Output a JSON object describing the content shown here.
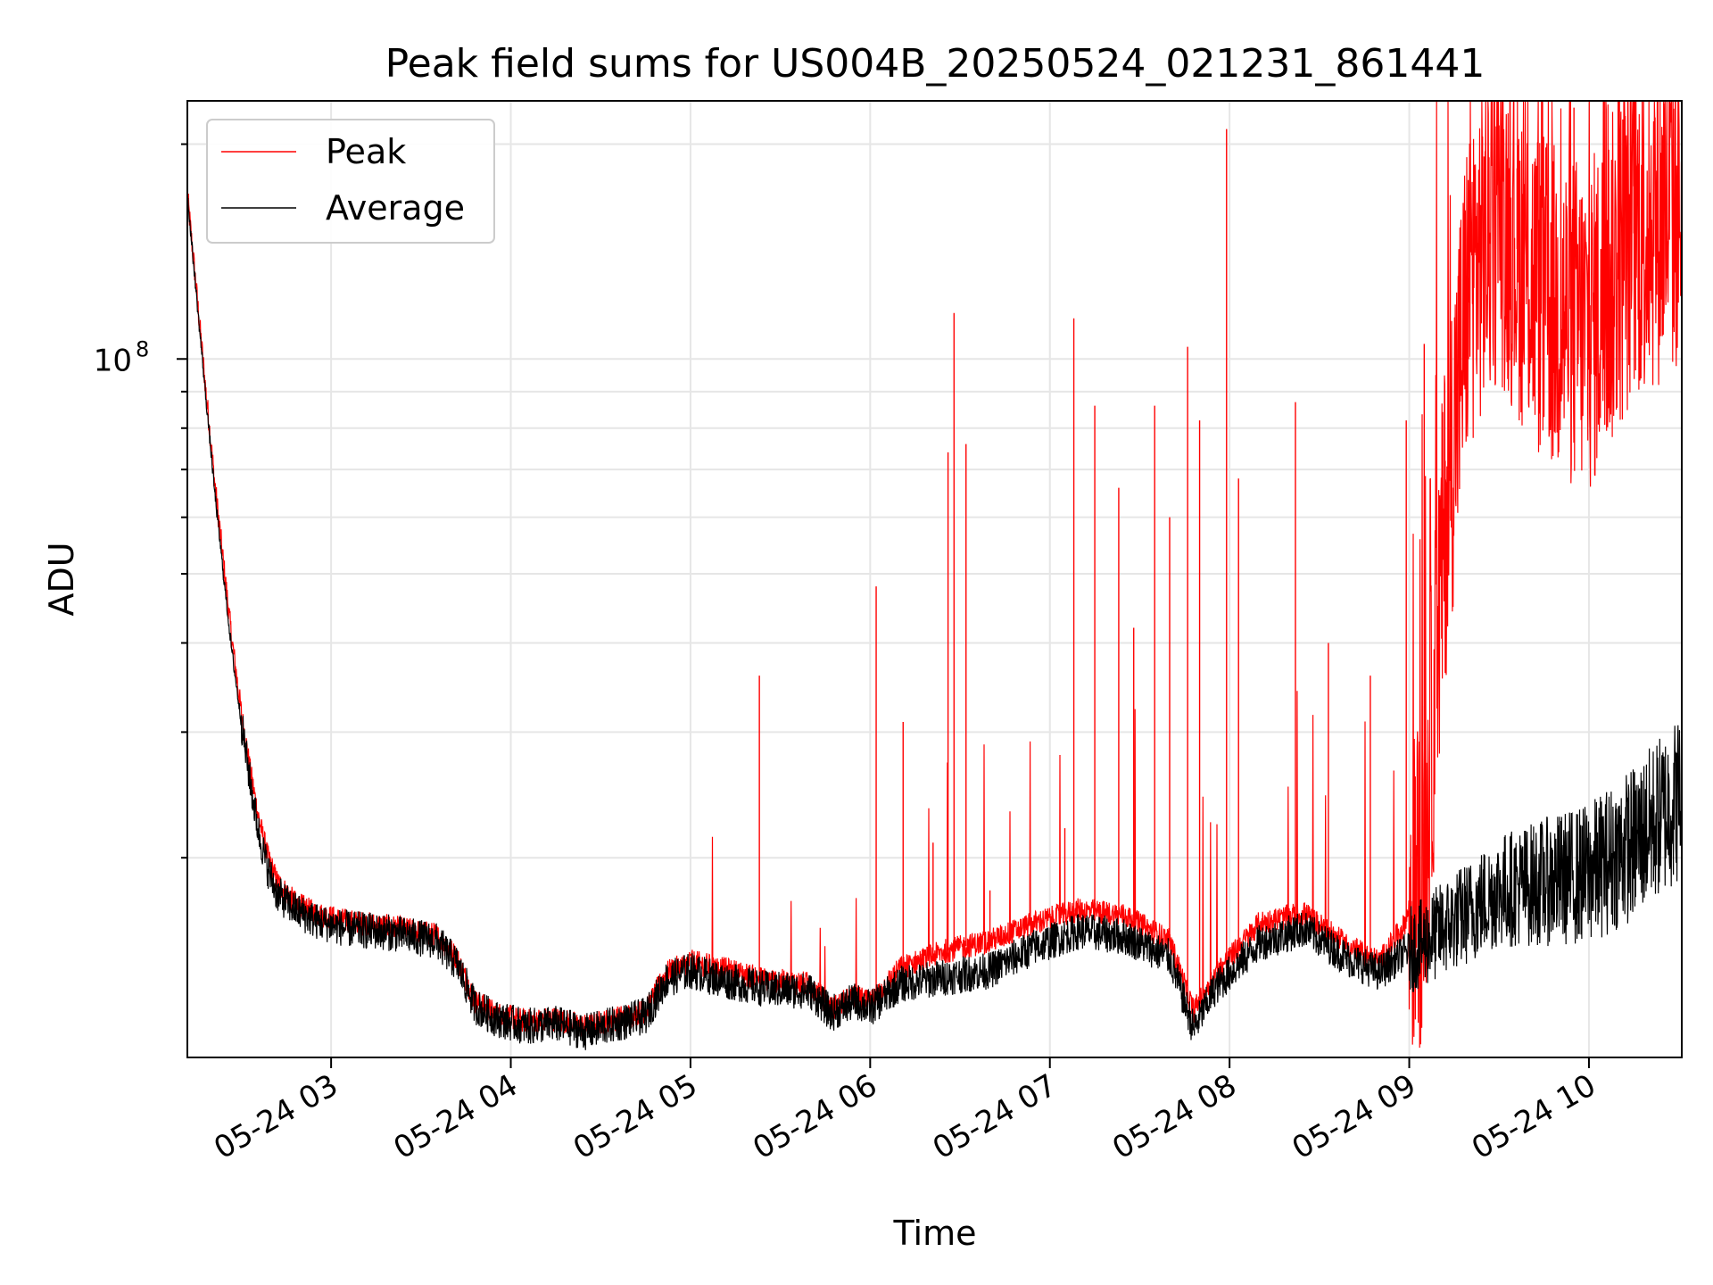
{
  "chart_data": {
    "type": "line",
    "title": "Peak field sums for US004B_20250524_021231_861441",
    "xlabel": "Time",
    "ylabel": "ADU",
    "y_scale": "log",
    "ylim": [
      10500000,
      230000000
    ],
    "xlim": [
      "2025-05-24 02:12",
      "2025-05-24 10:31"
    ],
    "grid": true,
    "legend_position": "upper-left",
    "x_ticks": [
      "05-24 03",
      "05-24 04",
      "05-24 05",
      "05-24 06",
      "05-24 07",
      "05-24 08",
      "05-24 09",
      "05-24 10"
    ],
    "y_ticks": [
      {
        "label_base": "10",
        "label_exp": "8",
        "value": 100000000
      }
    ],
    "series": [
      {
        "name": "Peak",
        "color": "#ff0000",
        "points": [
          [
            "02:12",
            170000000
          ],
          [
            "02:15",
            125000000
          ],
          [
            "02:18",
            92000000
          ],
          [
            "02:21",
            68000000
          ],
          [
            "02:24",
            52000000
          ],
          [
            "02:27",
            40000000
          ],
          [
            "02:30",
            32000000
          ],
          [
            "02:33",
            26500000
          ],
          [
            "02:36",
            22500000
          ],
          [
            "02:39",
            20000000
          ],
          [
            "02:42",
            18500000
          ],
          [
            "02:48",
            17300000
          ],
          [
            "02:55",
            16700000
          ],
          [
            "03:05",
            16300000
          ],
          [
            "03:20",
            16000000
          ],
          [
            "03:35",
            15600000
          ],
          [
            "03:42",
            14500000
          ],
          [
            "03:48",
            12600000
          ],
          [
            "03:55",
            12100000
          ],
          [
            "04:05",
            11800000
          ],
          [
            "04:15",
            11900000
          ],
          [
            "04:25",
            11600000
          ],
          [
            "04:35",
            11900000
          ],
          [
            "04:45",
            12200000
          ],
          [
            "04:52",
            13800000
          ],
          [
            "05:00",
            14300000
          ],
          [
            "05:10",
            14000000
          ],
          [
            "05:25",
            13500000
          ],
          [
            "05:40",
            13300000
          ],
          [
            "05:47",
            12300000
          ],
          [
            "05:55",
            12800000
          ],
          [
            "06:00",
            12500000
          ],
          [
            "06:10",
            14000000
          ],
          [
            "06:25",
            14800000
          ],
          [
            "06:40",
            15300000
          ],
          [
            "06:55",
            16200000
          ],
          [
            "07:10",
            16900000
          ],
          [
            "07:25",
            16600000
          ],
          [
            "07:40",
            15300000
          ],
          [
            "07:48",
            12200000
          ],
          [
            "07:55",
            13700000
          ],
          [
            "08:10",
            16200000
          ],
          [
            "08:25",
            16700000
          ],
          [
            "08:40",
            15000000
          ],
          [
            "08:50",
            14300000
          ],
          [
            "08:58",
            16000000
          ],
          [
            "09:05",
            19500000
          ],
          [
            "09:12",
            60000000
          ],
          [
            "09:20",
            130000000
          ],
          [
            "09:30",
            160000000
          ],
          [
            "09:45",
            120000000
          ],
          [
            "10:00",
            110000000
          ],
          [
            "10:15",
            150000000
          ],
          [
            "10:31",
            165000000
          ]
        ],
        "spikes": [
          [
            "05:23",
            36000000
          ],
          [
            "06:02",
            48000000
          ],
          [
            "06:11",
            31000000
          ],
          [
            "06:21",
            21000000
          ],
          [
            "06:26",
            74000000
          ],
          [
            "06:28",
            116000000
          ],
          [
            "06:32",
            76000000
          ],
          [
            "06:40",
            18000000
          ],
          [
            "07:05",
            22000000
          ],
          [
            "07:08",
            114000000
          ],
          [
            "07:15",
            86000000
          ],
          [
            "07:23",
            66000000
          ],
          [
            "07:28",
            42000000
          ],
          [
            "07:35",
            86000000
          ],
          [
            "07:40",
            60000000
          ],
          [
            "07:46",
            104000000
          ],
          [
            "07:50",
            82000000
          ],
          [
            "07:59",
            210000000
          ],
          [
            "08:03",
            68000000
          ],
          [
            "08:22",
            87000000
          ],
          [
            "08:33",
            40000000
          ],
          [
            "08:47",
            36000000
          ],
          [
            "08:59",
            82000000
          ],
          [
            "09:02",
            26000000
          ],
          [
            "09:05",
            105000000
          ],
          [
            "09:12",
            72000000
          ],
          [
            "09:17",
            108000000
          ],
          [
            "09:20",
            120000000
          ],
          [
            "09:27",
            145000000
          ],
          [
            "09:36",
            185000000
          ],
          [
            "09:55",
            225000000
          ],
          [
            "10:05",
            205000000
          ],
          [
            "10:15",
            230000000
          ],
          [
            "10:25",
            228000000
          ]
        ]
      },
      {
        "name": "Average",
        "color": "#000000",
        "points": [
          [
            "02:12",
            170000000
          ],
          [
            "02:15",
            123000000
          ],
          [
            "02:18",
            90000000
          ],
          [
            "02:21",
            66000000
          ],
          [
            "02:24",
            50000000
          ],
          [
            "02:27",
            38500000
          ],
          [
            "02:30",
            31000000
          ],
          [
            "02:33",
            25500000
          ],
          [
            "02:36",
            21500000
          ],
          [
            "02:39",
            19200000
          ],
          [
            "02:42",
            17800000
          ],
          [
            "02:48",
            16900000
          ],
          [
            "02:55",
            16300000
          ],
          [
            "03:05",
            15900000
          ],
          [
            "03:20",
            15700000
          ],
          [
            "03:35",
            15300000
          ],
          [
            "03:42",
            14200000
          ],
          [
            "03:48",
            12400000
          ],
          [
            "03:55",
            11900000
          ],
          [
            "04:05",
            11600000
          ],
          [
            "04:15",
            11700000
          ],
          [
            "04:25",
            11400000
          ],
          [
            "04:35",
            11700000
          ],
          [
            "04:45",
            12000000
          ],
          [
            "04:52",
            13500000
          ],
          [
            "05:00",
            13900000
          ],
          [
            "05:10",
            13500000
          ],
          [
            "05:25",
            13100000
          ],
          [
            "05:40",
            13000000
          ],
          [
            "05:47",
            12100000
          ],
          [
            "05:55",
            12600000
          ],
          [
            "06:00",
            12300000
          ],
          [
            "06:10",
            13300000
          ],
          [
            "06:25",
            13600000
          ],
          [
            "06:40",
            13900000
          ],
          [
            "06:55",
            15000000
          ],
          [
            "07:10",
            15800000
          ],
          [
            "07:25",
            15500000
          ],
          [
            "07:40",
            14500000
          ],
          [
            "07:48",
            11500000
          ],
          [
            "07:55",
            13100000
          ],
          [
            "08:10",
            15200000
          ],
          [
            "08:25",
            15900000
          ],
          [
            "08:40",
            14400000
          ],
          [
            "08:50",
            13800000
          ],
          [
            "08:58",
            14700000
          ],
          [
            "09:05",
            15200000
          ],
          [
            "09:12",
            16000000
          ],
          [
            "09:20",
            16800000
          ],
          [
            "09:30",
            18000000
          ],
          [
            "09:45",
            18500000
          ],
          [
            "10:00",
            19000000
          ],
          [
            "10:15",
            21000000
          ],
          [
            "10:31",
            24500000
          ]
        ]
      }
    ]
  }
}
